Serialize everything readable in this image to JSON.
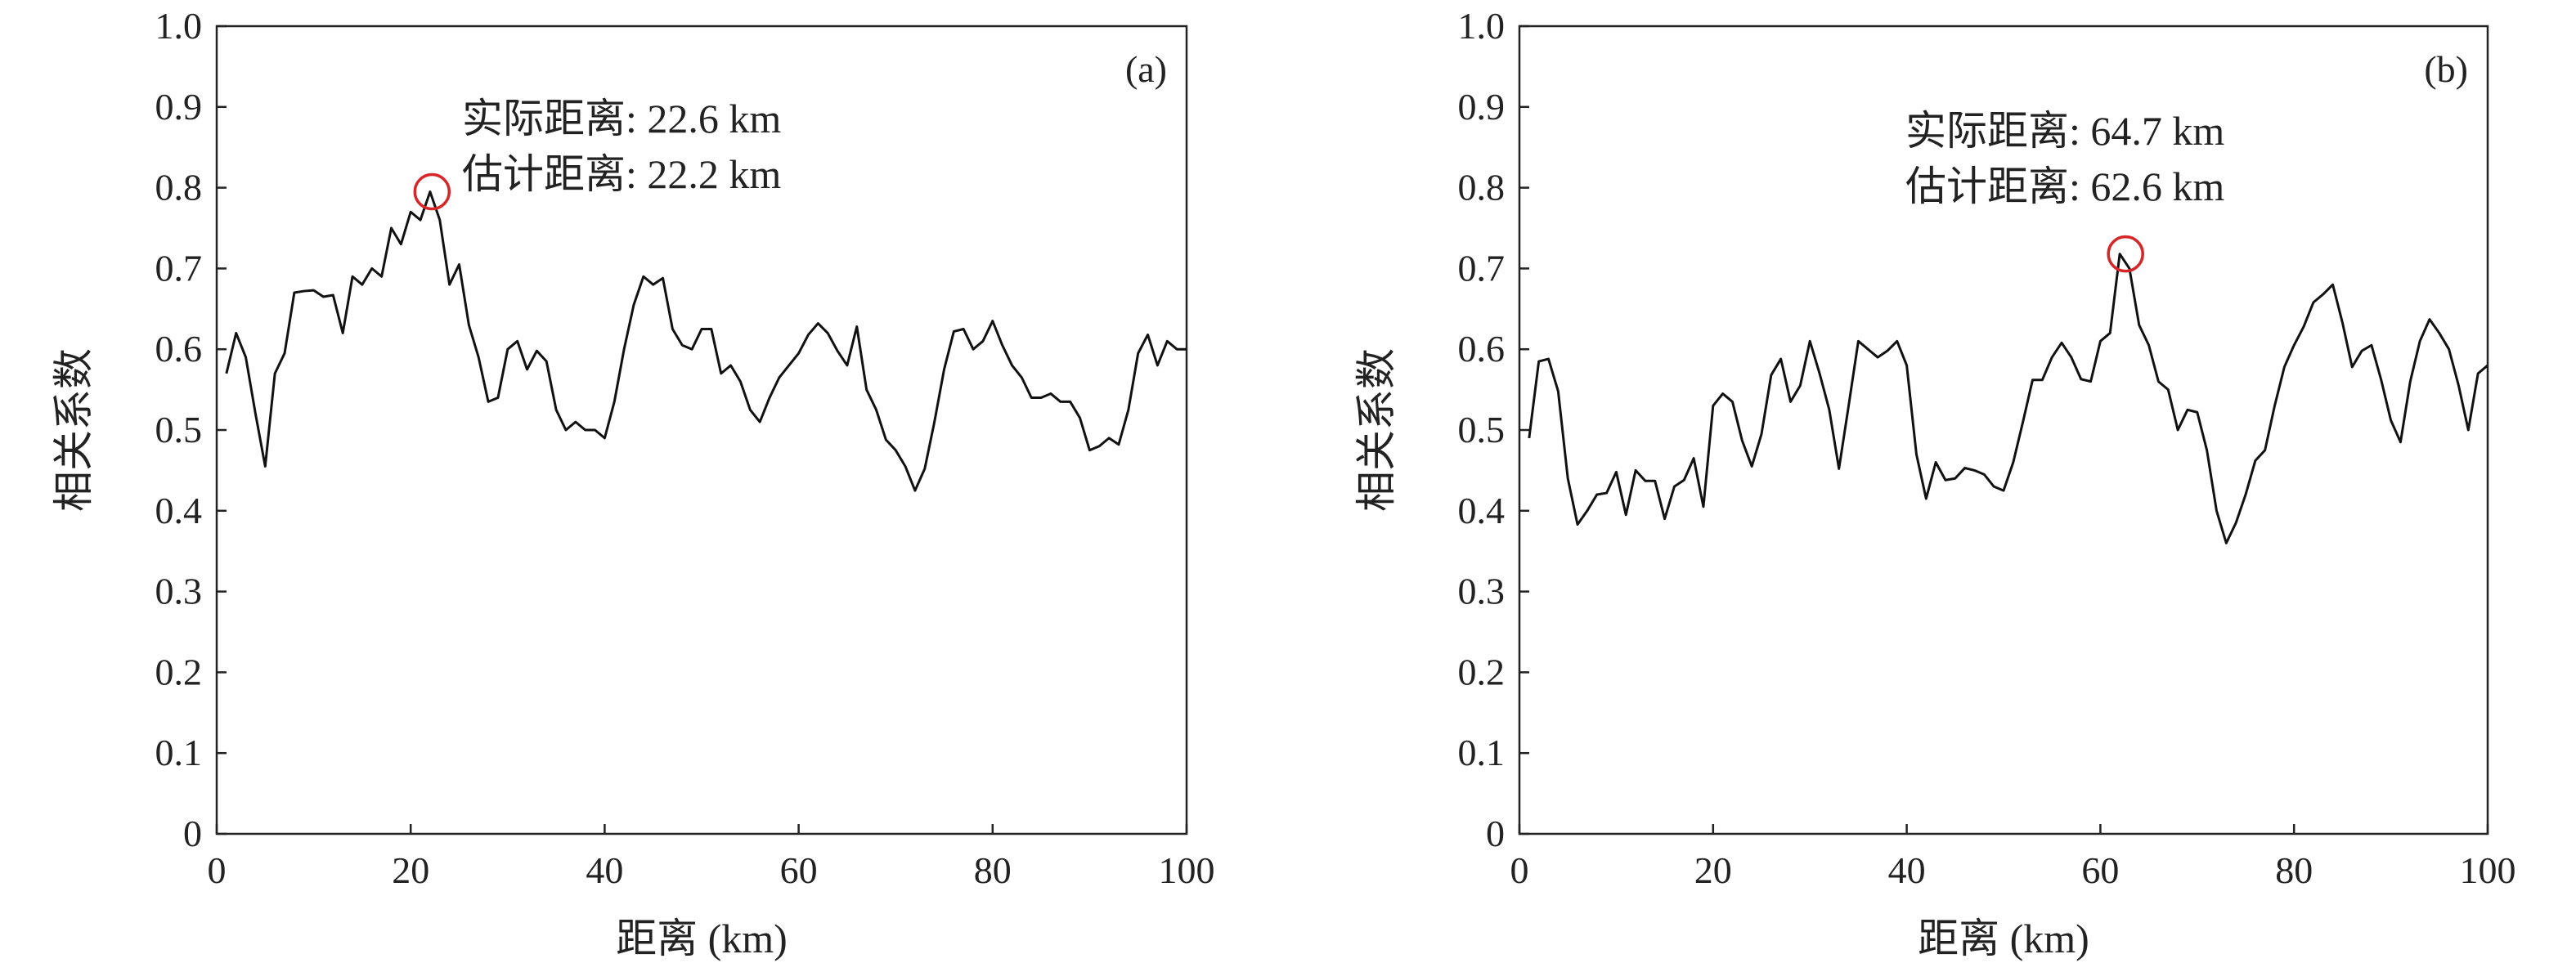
{
  "chart_data": [
    {
      "type": "line",
      "panel_label": "(a)",
      "xlabel": "距离 (km)",
      "ylabel": "相关系数",
      "xlim": [
        0,
        100
      ],
      "ylim": [
        0,
        1.0
      ],
      "xticks": [
        0,
        20,
        40,
        60,
        80,
        100
      ],
      "xtick_labels": [
        "0",
        "20",
        "40",
        "60",
        "80",
        "100"
      ],
      "yticks": [
        0,
        0.1,
        0.2,
        0.3,
        0.4,
        0.5,
        0.6,
        0.7,
        0.8,
        0.9,
        1.0
      ],
      "ytick_labels": [
        "0",
        "0.1",
        "0.2",
        "0.3",
        "0.4",
        "0.5",
        "0.6",
        "0.7",
        "0.8",
        "0.9",
        "1.0"
      ],
      "grid": false,
      "line_color": "#111111",
      "peak_marker_color": "#d62728",
      "peak": {
        "x": 22.2,
        "y": 0.795
      },
      "annotations": [
        "实际距离: 22.6 km",
        "估计距离: 22.2 km"
      ],
      "x": [
        1,
        2,
        3,
        4,
        5,
        6,
        7,
        8,
        9,
        10,
        11,
        12,
        13,
        14,
        15,
        16,
        17,
        18,
        19,
        20,
        21,
        22,
        23,
        24,
        25,
        26,
        27,
        28,
        29,
        30,
        31,
        32,
        33,
        34,
        35,
        36,
        37,
        38,
        39,
        40,
        41,
        42,
        43,
        44,
        45,
        46,
        47,
        48,
        49,
        50,
        51,
        52,
        53,
        54,
        55,
        56,
        57,
        58,
        59,
        60,
        61,
        62,
        63,
        64,
        65,
        66,
        67,
        68,
        69,
        70,
        71,
        72,
        73,
        74,
        75,
        76,
        77,
        78,
        79,
        80,
        81,
        82,
        83,
        84,
        85,
        86,
        87,
        88,
        89,
        90,
        91,
        92,
        93,
        94,
        95,
        96,
        97,
        98,
        99,
        100
      ],
      "y": [
        0.57,
        0.62,
        0.59,
        0.52,
        0.455,
        0.57,
        0.595,
        0.67,
        0.672,
        0.673,
        0.665,
        0.667,
        0.62,
        0.69,
        0.68,
        0.7,
        0.69,
        0.75,
        0.73,
        0.77,
        0.76,
        0.795,
        0.76,
        0.68,
        0.705,
        0.63,
        0.59,
        0.535,
        0.54,
        0.6,
        0.61,
        0.575,
        0.598,
        0.585,
        0.525,
        0.5,
        0.51,
        0.5,
        0.5,
        0.49,
        0.535,
        0.6,
        0.655,
        0.69,
        0.68,
        0.688,
        0.625,
        0.605,
        0.6,
        0.625,
        0.625,
        0.57,
        0.58,
        0.56,
        0.525,
        0.51,
        0.54,
        0.565,
        0.58,
        0.595,
        0.618,
        0.632,
        0.62,
        0.598,
        0.58,
        0.628,
        0.55,
        0.525,
        0.488,
        0.475,
        0.455,
        0.425,
        0.452,
        0.51,
        0.575,
        0.622,
        0.625,
        0.6,
        0.61,
        0.635,
        0.605,
        0.58,
        0.565,
        0.54,
        0.54,
        0.545,
        0.535,
        0.535,
        0.515,
        0.475,
        0.48,
        0.49,
        0.482,
        0.525,
        0.595,
        0.618,
        0.58,
        0.61,
        0.6,
        0.6
      ]
    },
    {
      "type": "line",
      "panel_label": "(b)",
      "xlabel": "距离 (km)",
      "ylabel": "相关系数",
      "xlim": [
        0,
        100
      ],
      "ylim": [
        0,
        1.0
      ],
      "xticks": [
        0,
        20,
        40,
        60,
        80,
        100
      ],
      "xtick_labels": [
        "0",
        "20",
        "40",
        "60",
        "80",
        "100"
      ],
      "yticks": [
        0,
        0.1,
        0.2,
        0.3,
        0.4,
        0.5,
        0.6,
        0.7,
        0.8,
        0.9,
        1.0
      ],
      "ytick_labels": [
        "0",
        "0.1",
        "0.2",
        "0.3",
        "0.4",
        "0.5",
        "0.6",
        "0.7",
        "0.8",
        "0.9",
        "1.0"
      ],
      "grid": false,
      "line_color": "#111111",
      "peak_marker_color": "#d62728",
      "peak": {
        "x": 62.6,
        "y": 0.718
      },
      "annotations": [
        "实际距离: 64.7 km",
        "估计距离: 62.6 km"
      ],
      "x": [
        1,
        2,
        3,
        4,
        5,
        6,
        7,
        8,
        9,
        10,
        11,
        12,
        13,
        14,
        15,
        16,
        17,
        18,
        19,
        20,
        21,
        22,
        23,
        24,
        25,
        26,
        27,
        28,
        29,
        30,
        31,
        32,
        33,
        34,
        35,
        36,
        37,
        38,
        39,
        40,
        41,
        42,
        43,
        44,
        45,
        46,
        47,
        48,
        49,
        50,
        51,
        52,
        53,
        54,
        55,
        56,
        57,
        58,
        59,
        60,
        61,
        62,
        63,
        64,
        65,
        66,
        67,
        68,
        69,
        70,
        71,
        72,
        73,
        74,
        75,
        76,
        77,
        78,
        79,
        80,
        81,
        82,
        83,
        84,
        85,
        86,
        87,
        88,
        89,
        90,
        91,
        92,
        93,
        94,
        95,
        96,
        97,
        98,
        99,
        100
      ],
      "y": [
        0.49,
        0.585,
        0.588,
        0.548,
        0.44,
        0.383,
        0.4,
        0.42,
        0.422,
        0.448,
        0.395,
        0.45,
        0.437,
        0.437,
        0.39,
        0.43,
        0.438,
        0.465,
        0.405,
        0.53,
        0.545,
        0.535,
        0.487,
        0.455,
        0.495,
        0.568,
        0.588,
        0.535,
        0.555,
        0.61,
        0.57,
        0.525,
        0.452,
        0.53,
        0.61,
        0.6,
        0.59,
        0.598,
        0.61,
        0.58,
        0.47,
        0.415,
        0.46,
        0.438,
        0.44,
        0.453,
        0.45,
        0.445,
        0.43,
        0.425,
        0.46,
        0.51,
        0.562,
        0.562,
        0.59,
        0.608,
        0.59,
        0.563,
        0.56,
        0.61,
        0.62,
        0.718,
        0.7,
        0.63,
        0.605,
        0.56,
        0.55,
        0.5,
        0.525,
        0.522,
        0.475,
        0.4,
        0.36,
        0.385,
        0.42,
        0.462,
        0.475,
        0.53,
        0.578,
        0.605,
        0.628,
        0.658,
        0.668,
        0.68,
        0.633,
        0.578,
        0.598,
        0.605,
        0.562,
        0.512,
        0.485,
        0.56,
        0.61,
        0.637,
        0.62,
        0.6,
        0.555,
        0.5,
        0.57,
        0.58
      ]
    }
  ]
}
